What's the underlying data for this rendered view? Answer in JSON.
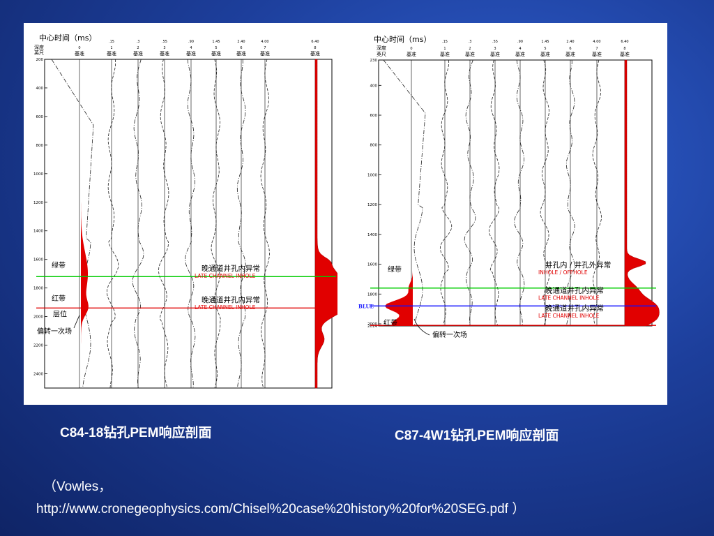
{
  "slide": {
    "caption_left": "C84-18钻孔PEM响应剖面",
    "caption_right": "C87-4W1钻孔PEM响应剖面",
    "reference_line1": "（Vowles，",
    "reference_line2": "http://www.cronegeophysics.com/Chisel%20case%20history%20for%20SEG.pdf ）"
  },
  "figures": [
    {
      "id": "left",
      "header_title": "中心时间（ms）",
      "depth_label_1": "深度",
      "depth_label_2": "英尺",
      "channel_times": [
        ".15",
        ".3",
        ".55",
        ".90",
        "1.45",
        "2.40",
        "4.00",
        "6.40"
      ],
      "channel_numbers": [
        "0",
        "1",
        "2",
        "3",
        "4",
        "5",
        "6",
        "7",
        "8"
      ],
      "baseline_label": "基准",
      "depth_ticks": [
        "200",
        "400",
        "600",
        "800",
        "1000",
        "1200",
        "1400",
        "1600",
        "1800",
        "2000",
        "2200",
        "2400"
      ],
      "depth_range": [
        200,
        2500
      ],
      "markers": {
        "green_zone": "绿带",
        "red_zone": "红带",
        "offset": "层位",
        "primary_field": "偏转一次场"
      },
      "annotations": [
        {
          "cn": "晚通道井孔内异常",
          "en": "LATE CHANNEL INHOLE",
          "depth": 1700
        },
        {
          "cn": "晚通道井孔内异常",
          "en": "LATE CHANNEL INHOLE",
          "depth": 1920
        }
      ],
      "lines": {
        "green_depth": 1720,
        "red_depth": 1940
      }
    },
    {
      "id": "right",
      "header_title": "中心时间（ms）",
      "depth_label_1": "深度",
      "depth_label_2": "英尺",
      "channel_times": [
        ".15",
        ".3",
        ".55",
        ".90",
        "1.45",
        "2.40",
        "4.00",
        "6.40"
      ],
      "channel_numbers": [
        "0",
        "1",
        "2",
        "3",
        "4",
        "5",
        "6",
        "7",
        "8"
      ],
      "baseline_label": "基准",
      "depth_ticks": [
        "230",
        "400",
        "600",
        "800",
        "1000",
        "1200",
        "1400",
        "1600",
        "1800",
        "2000",
        "2014"
      ],
      "depth_range": [
        230,
        2014
      ],
      "markers": {
        "green_zone": "绿带",
        "red_zone": "红带",
        "blue": "BLUE",
        "primary_field": "偏转一次场"
      },
      "annotations": [
        {
          "cn": "井孔内 / 井孔外异常",
          "en": "INHOLE / OFFHOLE",
          "depth": 1640
        },
        {
          "cn": "晚通道井孔内异常",
          "en": "LATE CHANNEL INHOLE",
          "depth": 1810
        },
        {
          "cn": "晚通道井孔内异常",
          "en": "LATE CHANNEL INHOLE",
          "depth": 1930
        }
      ],
      "lines": {
        "green_depth": 1760,
        "blue_depth": 1880,
        "red_depth": 2010
      }
    }
  ]
}
